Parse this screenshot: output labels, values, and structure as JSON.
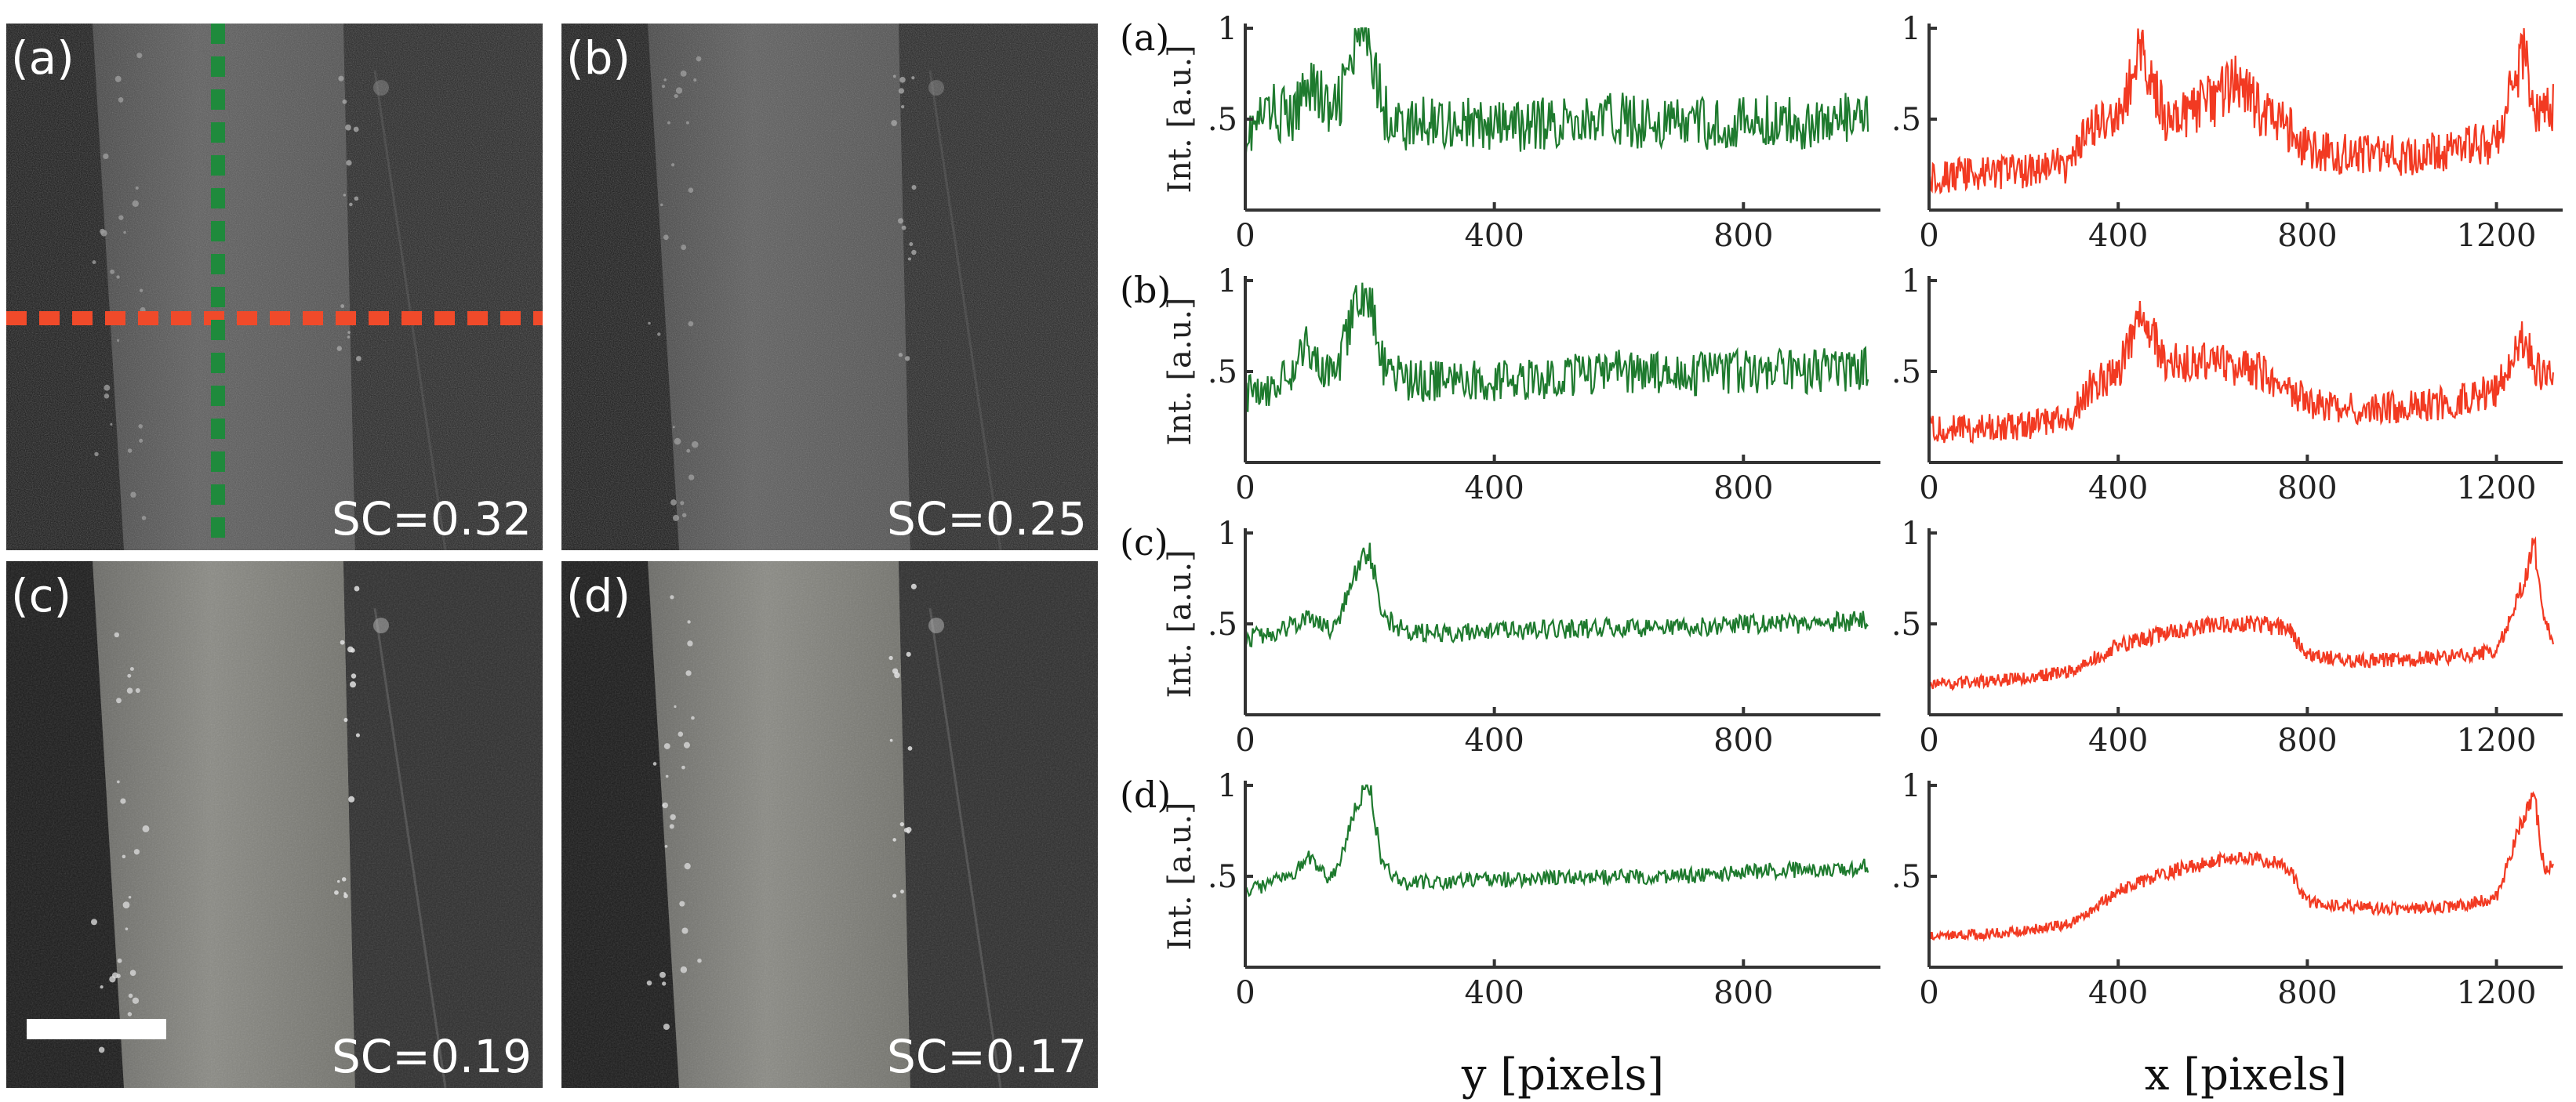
{
  "images": {
    "panels": [
      {
        "label": "(a)",
        "sc_text": "SC=0.32"
      },
      {
        "label": "(b)",
        "sc_text": "SC=0.25"
      },
      {
        "label": "(c)",
        "sc_text": "SC=0.19"
      },
      {
        "label": "(d)",
        "sc_text": "SC=0.17"
      }
    ],
    "speckle_contrast": [
      0.32,
      0.25,
      0.19,
      0.17
    ]
  },
  "colors": {
    "green_profile": "#1e7a2e",
    "red_profile": "#f23a22",
    "green_line": "#1f8a3c",
    "red_line": "#f04a2a",
    "axis": "#333333"
  },
  "chart_data": [
    {
      "type": "line",
      "panel": "(a)",
      "column": "y-profile",
      "series": [
        {
          "color": "green",
          "x": [
            0,
            40,
            80,
            100,
            140,
            180,
            200,
            220,
            260,
            300,
            400,
            500,
            600,
            700,
            800,
            900,
            1000
          ],
          "y": [
            0.4,
            0.55,
            0.5,
            0.75,
            0.5,
            0.9,
            1.0,
            0.55,
            0.45,
            0.5,
            0.45,
            0.48,
            0.5,
            0.47,
            0.48,
            0.48,
            0.5
          ]
        }
      ],
      "xlim": [
        0,
        1020
      ],
      "ylim": [
        0,
        1
      ],
      "xticks": [
        "0",
        "400",
        "800"
      ],
      "yticks": [
        ".5",
        "1"
      ],
      "ylabel": "Int. [a.u.]",
      "xlabel": ""
    },
    {
      "type": "line",
      "panel": "(a)",
      "column": "x-profile",
      "series": [
        {
          "color": "red",
          "x": [
            0,
            100,
            200,
            300,
            340,
            400,
            450,
            500,
            600,
            650,
            700,
            760,
            800,
            900,
            1000,
            1100,
            1200,
            1260,
            1280,
            1320
          ],
          "y": [
            0.18,
            0.2,
            0.22,
            0.25,
            0.45,
            0.5,
            0.9,
            0.5,
            0.6,
            0.7,
            0.55,
            0.45,
            0.33,
            0.3,
            0.3,
            0.33,
            0.38,
            0.9,
            0.5,
            0.55
          ]
        }
      ],
      "xlim": [
        0,
        1340
      ],
      "ylim": [
        0,
        1
      ],
      "xticks": [
        "0",
        "400",
        "800",
        "1200"
      ],
      "yticks": [
        ".5",
        "1"
      ],
      "ylabel": "",
      "xlabel": ""
    },
    {
      "type": "line",
      "panel": "(b)",
      "column": "y-profile",
      "series": [
        {
          "color": "green",
          "x": [
            0,
            40,
            80,
            100,
            140,
            180,
            200,
            220,
            260,
            300,
            400,
            500,
            600,
            700,
            800,
            900,
            1000
          ],
          "y": [
            0.38,
            0.42,
            0.5,
            0.65,
            0.45,
            0.85,
            0.95,
            0.55,
            0.45,
            0.45,
            0.45,
            0.47,
            0.5,
            0.48,
            0.5,
            0.5,
            0.52
          ]
        }
      ],
      "xlim": [
        0,
        1020
      ],
      "ylim": [
        0,
        1
      ],
      "xticks": [
        "0",
        "400",
        "800"
      ],
      "yticks": [
        ".5",
        "1"
      ],
      "ylabel": "Int. [a.u.]",
      "xlabel": ""
    },
    {
      "type": "line",
      "panel": "(b)",
      "column": "x-profile",
      "series": [
        {
          "color": "red",
          "x": [
            0,
            100,
            200,
            300,
            340,
            400,
            450,
            500,
            600,
            700,
            760,
            800,
            900,
            1000,
            1100,
            1200,
            1260,
            1280,
            1320
          ],
          "y": [
            0.18,
            0.19,
            0.2,
            0.24,
            0.42,
            0.5,
            0.8,
            0.55,
            0.55,
            0.5,
            0.42,
            0.33,
            0.3,
            0.3,
            0.33,
            0.4,
            0.7,
            0.5,
            0.48
          ]
        }
      ],
      "xlim": [
        0,
        1340
      ],
      "ylim": [
        0,
        1
      ],
      "xticks": [
        "0",
        "400",
        "800",
        "1200"
      ],
      "yticks": [
        ".5",
        "1"
      ],
      "ylabel": "",
      "xlabel": ""
    },
    {
      "type": "line",
      "panel": "(c)",
      "column": "y-profile",
      "series": [
        {
          "color": "green",
          "x": [
            0,
            40,
            80,
            100,
            140,
            180,
            200,
            220,
            260,
            300,
            400,
            500,
            600,
            700,
            800,
            900,
            1000
          ],
          "y": [
            0.42,
            0.45,
            0.5,
            0.55,
            0.45,
            0.8,
            0.9,
            0.55,
            0.45,
            0.45,
            0.46,
            0.47,
            0.48,
            0.48,
            0.5,
            0.5,
            0.52
          ]
        }
      ],
      "xlim": [
        0,
        1020
      ],
      "ylim": [
        0,
        1
      ],
      "xticks": [
        "0",
        "400",
        "800"
      ],
      "yticks": [
        ".5",
        "1"
      ],
      "ylabel": "Int. [a.u.]",
      "xlabel": ""
    },
    {
      "type": "line",
      "panel": "(c)",
      "column": "x-profile",
      "series": [
        {
          "color": "red",
          "x": [
            0,
            100,
            200,
            300,
            340,
            400,
            500,
            600,
            700,
            760,
            800,
            900,
            1000,
            1100,
            1200,
            1260,
            1280,
            1300,
            1320
          ],
          "y": [
            0.17,
            0.18,
            0.2,
            0.24,
            0.3,
            0.38,
            0.45,
            0.5,
            0.5,
            0.47,
            0.33,
            0.3,
            0.3,
            0.32,
            0.35,
            0.75,
            0.95,
            0.5,
            0.42
          ]
        }
      ],
      "xlim": [
        0,
        1340
      ],
      "ylim": [
        0,
        1
      ],
      "xticks": [
        "0",
        "400",
        "800",
        "1200"
      ],
      "yticks": [
        ".5",
        "1"
      ],
      "ylabel": "",
      "xlabel": ""
    },
    {
      "type": "line",
      "panel": "(d)",
      "column": "y-profile",
      "series": [
        {
          "color": "green",
          "x": [
            0,
            40,
            80,
            100,
            140,
            180,
            200,
            220,
            260,
            300,
            400,
            500,
            600,
            700,
            800,
            900,
            1000
          ],
          "y": [
            0.42,
            0.46,
            0.52,
            0.6,
            0.48,
            0.9,
            1.0,
            0.55,
            0.46,
            0.47,
            0.48,
            0.49,
            0.5,
            0.5,
            0.52,
            0.54,
            0.55
          ]
        }
      ],
      "xlim": [
        0,
        1020
      ],
      "ylim": [
        0,
        1
      ],
      "xticks": [
        "0",
        "400",
        "800"
      ],
      "yticks": [
        ".5",
        "1"
      ],
      "ylabel": "Int. [a.u.]",
      "xlabel": "y [pixels]"
    },
    {
      "type": "line",
      "panel": "(d)",
      "column": "x-profile",
      "series": [
        {
          "color": "red",
          "x": [
            0,
            100,
            200,
            300,
            340,
            400,
            500,
            600,
            700,
            760,
            800,
            900,
            1000,
            1100,
            1200,
            1260,
            1280,
            1300,
            1320
          ],
          "y": [
            0.17,
            0.18,
            0.2,
            0.24,
            0.3,
            0.42,
            0.52,
            0.58,
            0.6,
            0.55,
            0.36,
            0.33,
            0.32,
            0.33,
            0.38,
            0.85,
            0.95,
            0.55,
            0.55
          ]
        }
      ],
      "xlim": [
        0,
        1340
      ],
      "ylim": [
        0,
        1
      ],
      "xticks": [
        "0",
        "400",
        "800",
        "1200"
      ],
      "yticks": [
        ".5",
        "1"
      ],
      "ylabel": "",
      "xlabel": "x [pixels]"
    }
  ]
}
